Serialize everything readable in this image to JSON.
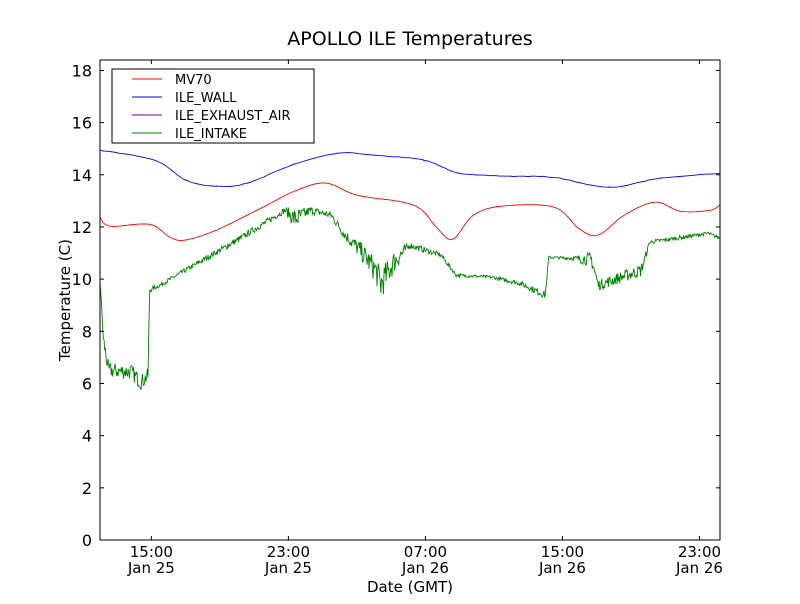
{
  "chart_data": {
    "type": "line",
    "title": "APOLLO ILE Temperatures",
    "xlabel": "Date (GMT)",
    "ylabel": "Temperature (C)",
    "x_units": "hours since Jan 25 00:00 GMT",
    "xlim": [
      12,
      48.2
    ],
    "ylim": [
      0,
      18.4
    ],
    "grid": false,
    "legend_position": "top-left",
    "xticks": [
      {
        "value": 15,
        "time": "15:00",
        "date": "Jan 25"
      },
      {
        "value": 23,
        "time": "23:00",
        "date": "Jan 25"
      },
      {
        "value": 31,
        "time": "07:00",
        "date": "Jan 26"
      },
      {
        "value": 39,
        "time": "15:00",
        "date": "Jan 26"
      },
      {
        "value": 47,
        "time": "23:00",
        "date": "Jan 26"
      }
    ],
    "yticks": [
      0,
      2,
      4,
      6,
      8,
      10,
      12,
      14,
      16,
      18
    ],
    "series": [
      {
        "name": "MV70",
        "color": "#ff0000",
        "x": [
          12,
          12.6,
          14.9,
          16.1,
          17,
          18.8,
          21.4,
          23.5,
          25.2,
          27,
          29.7,
          30.8,
          31.7,
          32.6,
          33.8,
          35.5,
          38.5,
          40,
          41.1,
          42.6,
          44.4,
          45.9,
          47.6,
          48.2
        ],
        "y": [
          12.37,
          12.03,
          12.1,
          11.6,
          11.5,
          11.88,
          12.72,
          13.41,
          13.68,
          13.22,
          12.95,
          12.64,
          11.95,
          11.53,
          12.45,
          12.8,
          12.76,
          11.92,
          11.69,
          12.45,
          12.95,
          12.6,
          12.64,
          12.84
        ]
      },
      {
        "name": "ILE_WALL",
        "color": "#0000ff",
        "x": [
          12,
          15.2,
          17,
          18.8,
          20.6,
          23.2,
          25.9,
          28,
          30.9,
          33,
          35.6,
          38.5,
          41.7,
          44.7,
          48.2
        ],
        "y": [
          14.94,
          14.56,
          13.8,
          13.56,
          13.68,
          14.37,
          14.83,
          14.75,
          14.56,
          14.06,
          13.95,
          13.9,
          13.52,
          13.87,
          14.06
        ]
      },
      {
        "name": "ILE_EXHAUST_AIR",
        "color": "#800080",
        "x": [],
        "y": []
      },
      {
        "name": "ILE_INTAKE",
        "color": "#008000",
        "x": [
          12,
          12.2,
          12.5,
          13.8,
          14.4,
          14.8,
          14.9,
          15.5,
          17.8,
          20.2,
          22.8,
          23.4,
          24.3,
          25.5,
          26.3,
          27.2,
          28.1,
          28.4,
          29.2,
          30.1,
          31.9,
          32.8,
          34.8,
          36.5,
          38,
          38.2,
          39.5,
          40.7,
          41.1,
          43.6,
          44.1,
          46,
          47.5,
          48.2
        ],
        "y": [
          9.96,
          7.66,
          6.5,
          6.45,
          6.05,
          6.3,
          9.58,
          9.77,
          10.65,
          11.57,
          12.64,
          12.3,
          12.64,
          12.45,
          11.69,
          11.1,
          10.34,
          9.8,
          10.7,
          11.3,
          10.92,
          10.15,
          10.08,
          9.85,
          9.39,
          10.84,
          10.8,
          10.75,
          9.77,
          10.34,
          11.42,
          11.6,
          11.76,
          11.57
        ],
        "noise": [
          0.1,
          0.3,
          0.3,
          0.3,
          0.3,
          0.3,
          0.1,
          0.08,
          0.1,
          0.12,
          0.12,
          0.4,
          0.15,
          0.15,
          0.2,
          0.35,
          0.5,
          0.6,
          0.45,
          0.12,
          0.1,
          0.06,
          0.06,
          0.1,
          0.15,
          0.05,
          0.06,
          0.3,
          0.2,
          0.25,
          0.08,
          0.08,
          0.06,
          0.06
        ]
      }
    ]
  }
}
